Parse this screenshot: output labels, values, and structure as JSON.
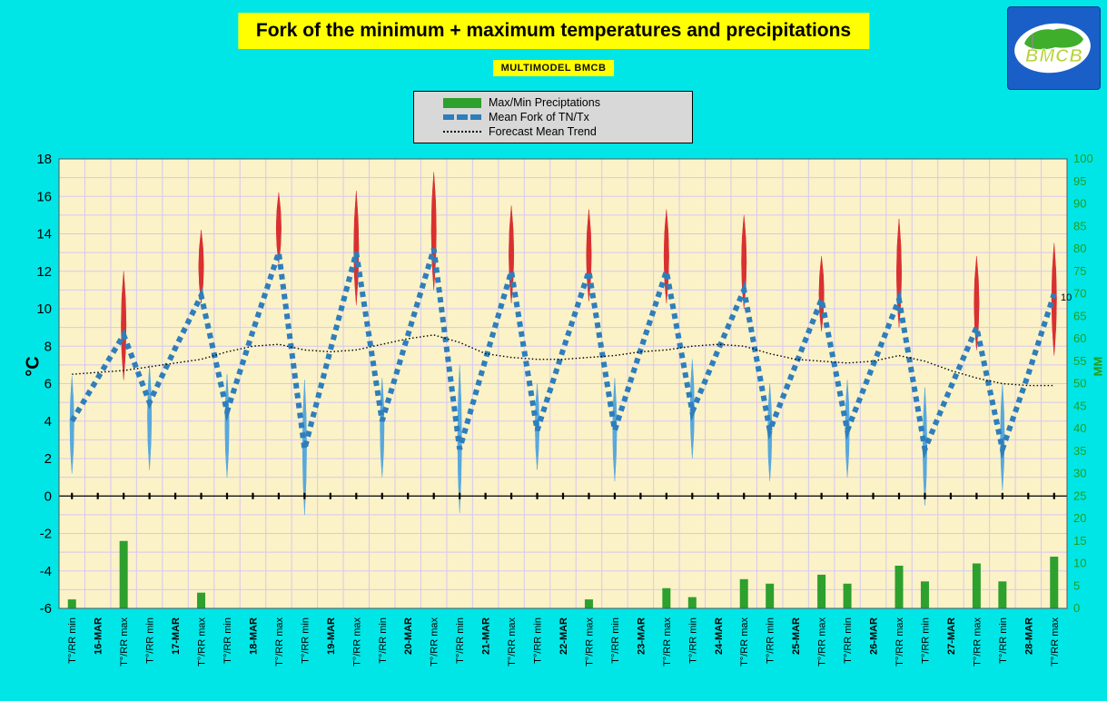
{
  "header": {
    "title": "Fork of the minimum + maximum temperatures and precipitations",
    "subtitle": "MULTIMODEL BMCB"
  },
  "logo": {
    "text": "BMCB"
  },
  "legend": {
    "items": [
      {
        "label": "Max/Min Preciptations",
        "swatch": "bar"
      },
      {
        "label": "Mean Fork of TN/Tx",
        "swatch": "dashed"
      },
      {
        "label": "Forecast Mean Trend",
        "swatch": "dotted"
      }
    ]
  },
  "colors": {
    "background": "#00E6E6",
    "title_bg": "#FFFF00",
    "plot_bg": "#FBF2C8",
    "grid": "#D6C9EE",
    "bars": "#2DA02D",
    "fork_line": "#2E7EBB",
    "trend_line": "#000000",
    "max_spike": "#D93030",
    "min_spike": "#58A8DC",
    "right_axis_text": "#1E9E1E"
  },
  "chart_data": {
    "type": "combo",
    "title": "Fork of the minimum + maximum temperatures and precipitations",
    "dates": [
      "16-MAR",
      "17-MAR",
      "18-MAR",
      "19-MAR",
      "20-MAR",
      "21-MAR",
      "22-MAR",
      "23-MAR",
      "24-MAR",
      "25-MAR",
      "26-MAR",
      "27-MAR",
      "28-MAR"
    ],
    "x_categories": [
      "T°/RR min",
      "16-MAR",
      "T°/RR max",
      "T°/RR min",
      "17-MAR",
      "T°/RR max",
      "T°/RR min",
      "18-MAR",
      "T°/RR max",
      "T°/RR min",
      "19-MAR",
      "T°/RR max",
      "T°/RR min",
      "20-MAR",
      "T°/RR max",
      "T°/RR min",
      "21-MAR",
      "T°/RR max",
      "T°/RR min",
      "22-MAR",
      "T°/RR max",
      "T°/RR min",
      "23-MAR",
      "T°/RR max",
      "T°/RR min",
      "24-MAR",
      "T°/RR max",
      "T°/RR min",
      "25-MAR",
      "T°/RR max",
      "T°/RR min",
      "26-MAR",
      "T°/RR max",
      "T°/RR min",
      "27-MAR",
      "T°/RR max",
      "T°/RR min",
      "28-MAR",
      "T°/RR max"
    ],
    "left_axis": {
      "label": "°C",
      "min": -6,
      "max": 18,
      "tick": 2
    },
    "right_axis": {
      "label": "MM",
      "min": 0,
      "max": 100,
      "tick": 5
    },
    "series": {
      "precipitation_bars": {
        "name": "Max/Min Preciptations",
        "axis": "right",
        "values": [
          2,
          0,
          15,
          0,
          0,
          3.5,
          0,
          0,
          0,
          0,
          0,
          0,
          0,
          0,
          0,
          0,
          0,
          0,
          0,
          0,
          2,
          0,
          0,
          4.5,
          2.5,
          0,
          6.5,
          5.5,
          0,
          7.5,
          5.5,
          0,
          9.5,
          6,
          0,
          10,
          6,
          0,
          11.5
        ]
      },
      "mean_fork": {
        "name": "Mean Fork of TN/Tx",
        "axis": "left",
        "style": "dashed",
        "values": [
          4,
          6.3,
          8.6,
          5,
          7.9,
          10.7,
          4.5,
          8.8,
          13,
          2.5,
          7.8,
          13,
          4,
          8.6,
          13.2,
          2.5,
          7.3,
          12,
          3.5,
          7.8,
          12,
          3.5,
          7.8,
          12,
          4.5,
          7.8,
          11,
          3.5,
          7,
          10.5,
          3.5,
          7,
          10.5,
          2.5,
          5.8,
          9,
          2.5,
          6.5,
          10.8
        ]
      },
      "forecast_trend": {
        "name": "Forecast Mean Trend",
        "axis": "left",
        "style": "dotted",
        "values": [
          6.5,
          6.6,
          6.7,
          6.9,
          7.1,
          7.3,
          7.7,
          8,
          8.1,
          7.8,
          7.7,
          7.8,
          8.1,
          8.4,
          8.6,
          8.2,
          7.6,
          7.4,
          7.3,
          7.3,
          7.4,
          7.5,
          7.7,
          7.8,
          8,
          8.1,
          8,
          7.6,
          7.3,
          7.2,
          7.1,
          7.2,
          7.5,
          7.2,
          6.7,
          6.3,
          6,
          5.9,
          5.9
        ]
      },
      "max_temp_spikes": {
        "name": "Max temperature spread",
        "axis": "left",
        "ranges": [
          [
            6.2,
            12
          ],
          [
            10.3,
            14.2
          ],
          [
            12.4,
            16.2
          ],
          [
            10.2,
            16.3
          ],
          [
            11,
            17.3
          ],
          [
            10.3,
            15.5
          ],
          [
            10.4,
            15.3
          ],
          [
            10.3,
            15.3
          ],
          [
            10,
            15
          ],
          [
            8.8,
            12.8
          ],
          [
            9,
            14.8
          ],
          [
            7.8,
            12.8
          ],
          [
            7.5,
            13.5
          ]
        ]
      },
      "min_temp_spikes": {
        "name": "Min temperature spread",
        "axis": "left",
        "ranges": [
          [
            1.2,
            6.4
          ],
          [
            1.4,
            7
          ],
          [
            1,
            6.5
          ],
          [
            -1,
            6.2
          ],
          [
            1,
            6.3
          ],
          [
            -0.9,
            7
          ],
          [
            1.4,
            6
          ],
          [
            0.8,
            6.3
          ],
          [
            2,
            7.3
          ],
          [
            0.8,
            6
          ],
          [
            1,
            6.2
          ],
          [
            -0.5,
            5.8
          ],
          [
            0.3,
            6
          ]
        ]
      }
    },
    "annotations": [
      {
        "text": "10"
      }
    ]
  }
}
